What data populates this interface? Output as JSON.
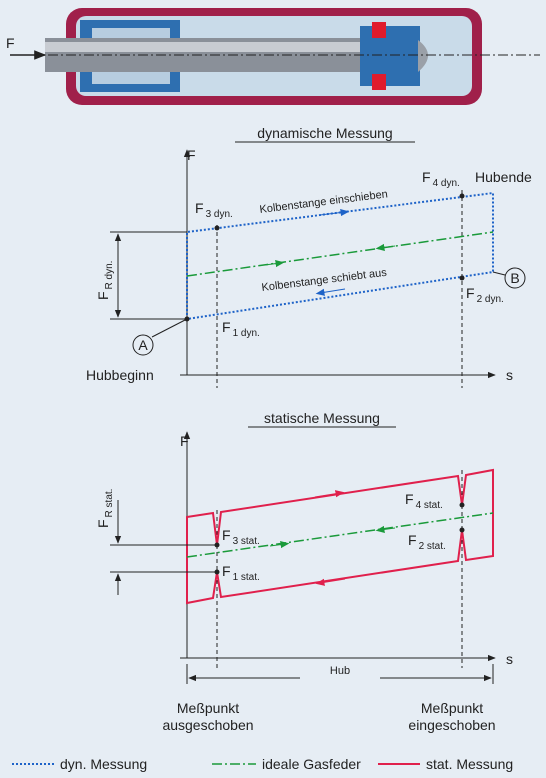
{
  "force_label": "F",
  "dynamic": {
    "title": "dynamische Messung",
    "y_axis": "F",
    "x_axis": "s",
    "f3": {
      "main": "F",
      "sub": "3 dyn."
    },
    "f4": {
      "main": "F",
      "sub": "4 dyn."
    },
    "f1": {
      "main": "F",
      "sub": "1 dyn."
    },
    "f2": {
      "main": "F",
      "sub": "2 dyn."
    },
    "fr": {
      "main": "F",
      "sub": "R dyn."
    },
    "stroke_end": "Hubende",
    "stroke_start": "Hubbeginn",
    "push_in": "Kolbenstange einschieben",
    "push_out": "Kolbenstange schiebt aus",
    "point_a": "A",
    "point_b": "B"
  },
  "static": {
    "title": "statische Messung",
    "y_axis": "F",
    "x_axis": "s",
    "f4": {
      "main": "F",
      "sub": "4 stat."
    },
    "f3": {
      "main": "F",
      "sub": "3 stat."
    },
    "f2": {
      "main": "F",
      "sub": "2 stat."
    },
    "f1": {
      "main": "F",
      "sub": "1 stat."
    },
    "fr": {
      "main": "F",
      "sub": "R stat."
    },
    "stroke": "Hub",
    "point_out": [
      "Meßpunkt",
      "ausgeschoben"
    ],
    "point_in": [
      "Meßpunkt",
      "eingeschoben"
    ]
  },
  "legend": [
    "dyn. Messung",
    "ideale Gasfeder",
    "stat. Messung"
  ]
}
